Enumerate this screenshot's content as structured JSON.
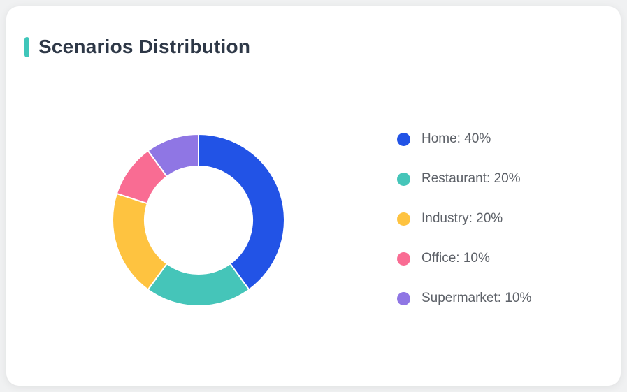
{
  "page": {
    "background_color": "#f0f1f2"
  },
  "card": {
    "title": "Scenarios Distribution",
    "accent_color": "#3fc6ba",
    "background_color": "#ffffff"
  },
  "chart_data": {
    "type": "pie",
    "subtype": "donut",
    "title": "Scenarios Distribution",
    "categories": [
      "Home",
      "Restaurant",
      "Industry",
      "Office",
      "Supermarket"
    ],
    "values": [
      40,
      20,
      20,
      10,
      10
    ],
    "unit": "%",
    "colors": [
      "#2253e6",
      "#45c5b9",
      "#fec340",
      "#f96c93",
      "#8f76e4"
    ],
    "start_angle_deg": 0,
    "direction": "clockwise",
    "inner_radius_ratio": 0.63,
    "slice_gap_color": "#ffffff",
    "legend_position": "right"
  },
  "legend": {
    "items": [
      {
        "label": "Home",
        "value": "40%",
        "display": "Home: 40%",
        "color": "#2253e6"
      },
      {
        "label": "Restaurant",
        "value": "20%",
        "display": "Restaurant: 20%",
        "color": "#45c5b9"
      },
      {
        "label": "Industry",
        "value": "20%",
        "display": "Industry: 20%",
        "color": "#fec340"
      },
      {
        "label": "Office",
        "value": "10%",
        "display": "Office: 10%",
        "color": "#f96c93"
      },
      {
        "label": "Supermarket",
        "value": "10%",
        "display": "Supermarket: 10%",
        "color": "#8f76e4"
      }
    ]
  }
}
